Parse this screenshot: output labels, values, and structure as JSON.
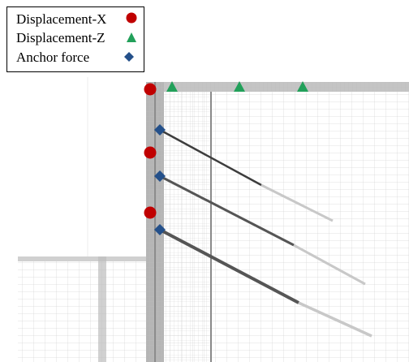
{
  "legend": {
    "items": [
      {
        "label": "Displacement-X"
      },
      {
        "label": "Displacement-Z"
      },
      {
        "label": "Anchor force"
      }
    ]
  }
}
